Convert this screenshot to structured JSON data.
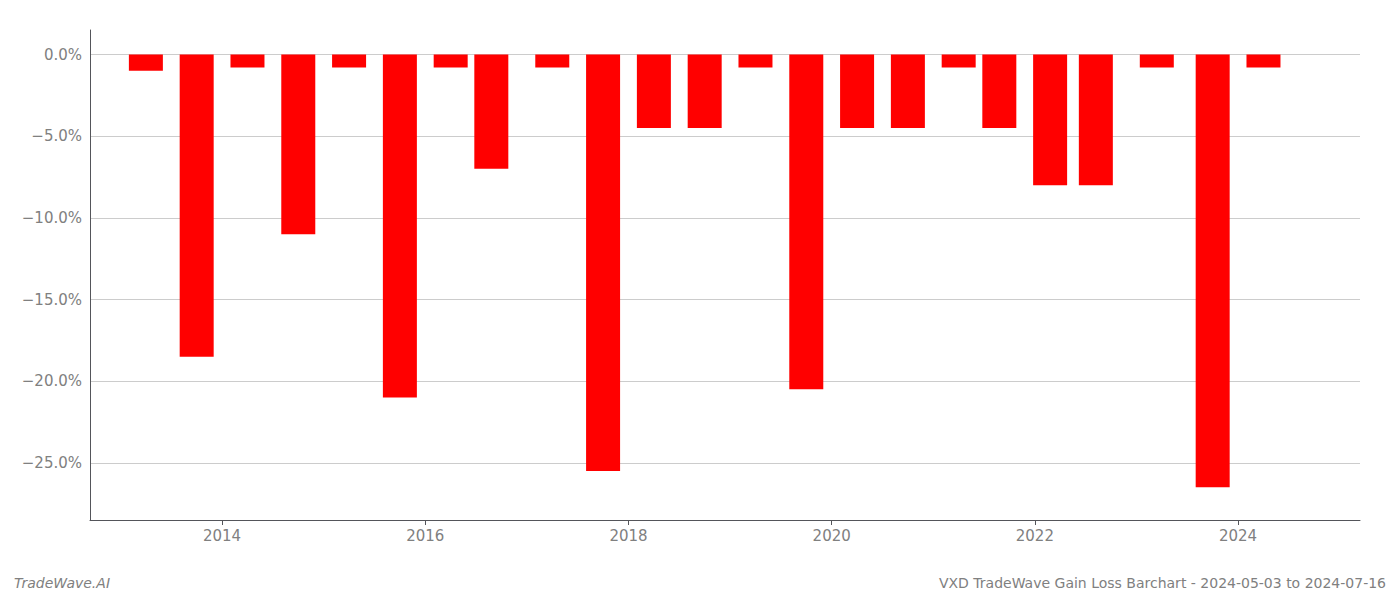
{
  "chart_data": {
    "type": "bar",
    "x": [
      2013.25,
      2013.75,
      2014.25,
      2014.75,
      2015.25,
      2015.75,
      2016.25,
      2016.65,
      2017.25,
      2017.75,
      2018.25,
      2018.75,
      2019.25,
      2019.75,
      2020.25,
      2020.75,
      2021.25,
      2021.65,
      2022.15,
      2022.6,
      2023.2,
      2023.75,
      2024.25
    ],
    "values": [
      -1.0,
      -18.5,
      -0.8,
      -11.0,
      -0.8,
      -21.0,
      -0.8,
      -7.0,
      -0.8,
      -25.5,
      -4.5,
      -4.5,
      -0.8,
      -20.5,
      -4.5,
      -4.5,
      -0.8,
      -4.5,
      -8.0,
      -8.0,
      -0.8,
      -26.5,
      -0.8
    ],
    "color": "#ff0000",
    "xlim": [
      2012.7,
      2025.2
    ],
    "xticks": [
      2014,
      2016,
      2018,
      2020,
      2022,
      2024
    ],
    "ylim": [
      -28.5,
      1.5
    ],
    "yticks": [
      {
        "value": 0.0,
        "label": "0.0%"
      },
      {
        "value": -5.0,
        "label": "−5.0%"
      },
      {
        "value": -10.0,
        "label": "−10.0%"
      },
      {
        "value": -15.0,
        "label": "−15.0%"
      },
      {
        "value": -20.0,
        "label": "−20.0%"
      },
      {
        "value": -25.0,
        "label": "−25.0%"
      }
    ],
    "grid": true,
    "annotations": [
      "TradeWave.AI",
      "VXD TradeWave Gain Loss Barchart - 2024-05-03 to 2024-07-16"
    ]
  }
}
